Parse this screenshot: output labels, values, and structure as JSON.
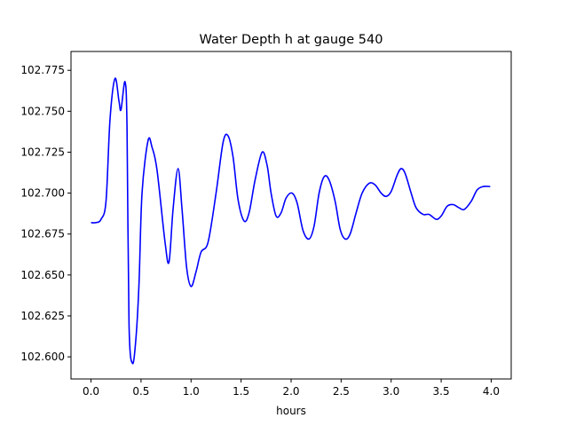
{
  "chart_data": {
    "type": "line",
    "title": "Water Depth h at gauge 540",
    "xlabel": "hours",
    "ylabel": "",
    "xlim": [
      -0.2,
      4.2
    ],
    "ylim": [
      102.5865,
      102.7865
    ],
    "grid": false,
    "x_ticks": [
      0.0,
      0.5,
      1.0,
      1.5,
      2.0,
      2.5,
      3.0,
      3.5,
      4.0
    ],
    "x_tick_labels": [
      "0.0",
      "0.5",
      "1.0",
      "1.5",
      "2.0",
      "2.5",
      "3.0",
      "3.5",
      "4.0"
    ],
    "y_ticks": [
      102.6,
      102.625,
      102.65,
      102.675,
      102.7,
      102.725,
      102.75,
      102.775
    ],
    "y_tick_labels": [
      "102.600",
      "102.625",
      "102.650",
      "102.675",
      "102.700",
      "102.725",
      "102.750",
      "102.775"
    ],
    "series": [
      {
        "color": "#0000ff",
        "points": [
          [
            0.0,
            102.682
          ],
          [
            0.05,
            102.682
          ],
          [
            0.1,
            102.684
          ],
          [
            0.15,
            102.695
          ],
          [
            0.19,
            102.745
          ],
          [
            0.24,
            102.77
          ],
          [
            0.28,
            102.756
          ],
          [
            0.3,
            102.751
          ],
          [
            0.34,
            102.768
          ],
          [
            0.36,
            102.74
          ],
          [
            0.38,
            102.62
          ],
          [
            0.415,
            102.596
          ],
          [
            0.45,
            102.612
          ],
          [
            0.48,
            102.645
          ],
          [
            0.51,
            102.7
          ],
          [
            0.57,
            102.732
          ],
          [
            0.61,
            102.728
          ],
          [
            0.66,
            102.714
          ],
          [
            0.74,
            102.67
          ],
          [
            0.78,
            102.658
          ],
          [
            0.82,
            102.69
          ],
          [
            0.87,
            102.715
          ],
          [
            0.91,
            102.69
          ],
          [
            0.955,
            102.655
          ],
          [
            1.0,
            102.643
          ],
          [
            1.05,
            102.652
          ],
          [
            1.1,
            102.664
          ],
          [
            1.17,
            102.67
          ],
          [
            1.25,
            102.7
          ],
          [
            1.32,
            102.731
          ],
          [
            1.37,
            102.735
          ],
          [
            1.42,
            102.722
          ],
          [
            1.47,
            102.696
          ],
          [
            1.53,
            102.683
          ],
          [
            1.58,
            102.688
          ],
          [
            1.64,
            102.708
          ],
          [
            1.71,
            102.725
          ],
          [
            1.76,
            102.717
          ],
          [
            1.8,
            102.7
          ],
          [
            1.85,
            102.686
          ],
          [
            1.9,
            102.688
          ],
          [
            1.95,
            102.697
          ],
          [
            2.01,
            102.7
          ],
          [
            2.06,
            102.694
          ],
          [
            2.12,
            102.677
          ],
          [
            2.18,
            102.672
          ],
          [
            2.23,
            102.68
          ],
          [
            2.28,
            102.7
          ],
          [
            2.33,
            102.71
          ],
          [
            2.38,
            102.708
          ],
          [
            2.44,
            102.695
          ],
          [
            2.49,
            102.678
          ],
          [
            2.54,
            102.672
          ],
          [
            2.59,
            102.675
          ],
          [
            2.65,
            102.688
          ],
          [
            2.71,
            102.7
          ],
          [
            2.78,
            102.706
          ],
          [
            2.84,
            102.705
          ],
          [
            2.9,
            102.7
          ],
          [
            2.95,
            102.698
          ],
          [
            3.0,
            102.701
          ],
          [
            3.06,
            102.711
          ],
          [
            3.1,
            102.715
          ],
          [
            3.14,
            102.712
          ],
          [
            3.2,
            102.7
          ],
          [
            3.25,
            102.691
          ],
          [
            3.32,
            102.687
          ],
          [
            3.38,
            102.687
          ],
          [
            3.45,
            102.684
          ],
          [
            3.5,
            102.686
          ],
          [
            3.56,
            102.692
          ],
          [
            3.62,
            102.693
          ],
          [
            3.68,
            102.691
          ],
          [
            3.73,
            102.69
          ],
          [
            3.8,
            102.695
          ],
          [
            3.86,
            102.702
          ],
          [
            3.92,
            102.704
          ],
          [
            3.99,
            102.704
          ]
        ]
      }
    ]
  }
}
